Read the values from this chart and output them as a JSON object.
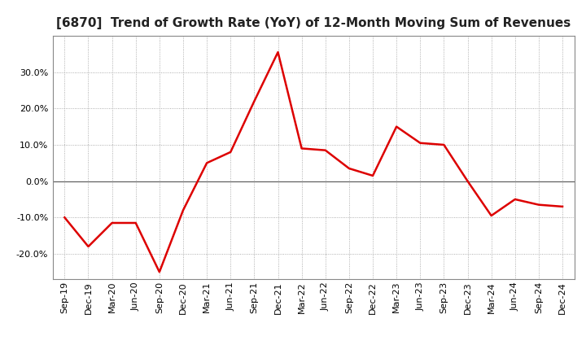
{
  "title": "[6870]  Trend of Growth Rate (YoY) of 12-Month Moving Sum of Revenues",
  "x_labels": [
    "Sep-19",
    "Dec-19",
    "Mar-20",
    "Jun-20",
    "Sep-20",
    "Dec-20",
    "Mar-21",
    "Jun-21",
    "Sep-21",
    "Dec-21",
    "Mar-22",
    "Jun-22",
    "Sep-22",
    "Dec-22",
    "Mar-23",
    "Jun-23",
    "Sep-23",
    "Dec-23",
    "Mar-24",
    "Jun-24",
    "Sep-24",
    "Dec-24"
  ],
  "y_values": [
    -10.0,
    -18.0,
    -11.5,
    -11.5,
    -25.0,
    -8.0,
    5.0,
    8.0,
    22.0,
    35.5,
    9.0,
    8.5,
    3.5,
    1.5,
    15.0,
    10.5,
    10.0,
    0.0,
    -9.5,
    -5.0,
    -6.5,
    -7.0
  ],
  "line_color": "#dd0000",
  "line_width": 1.8,
  "ylim": [
    -27,
    40
  ],
  "yticks": [
    -20.0,
    -10.0,
    0.0,
    10.0,
    20.0,
    30.0
  ],
  "grid_color": "#999999",
  "background_color": "#ffffff",
  "title_fontsize": 11,
  "tick_fontsize": 8,
  "zero_line_color": "#555555"
}
